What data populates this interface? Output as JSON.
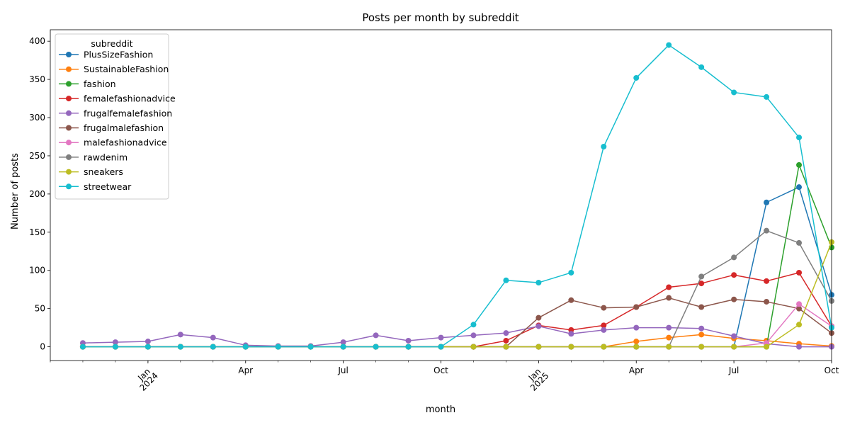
{
  "chart_data": {
    "type": "line",
    "title": "Posts per month by subreddit",
    "xlabel": "month",
    "ylabel": "Number of posts",
    "ylim": [
      -18,
      415
    ],
    "yticks": [
      0,
      50,
      100,
      150,
      200,
      250,
      300,
      350,
      400
    ],
    "x": [
      "2023-11",
      "2023-12",
      "2024-01",
      "2024-02",
      "2024-03",
      "2024-04",
      "2024-05",
      "2024-06",
      "2024-07",
      "2024-08",
      "2024-09",
      "2024-10",
      "2024-11",
      "2024-12",
      "2025-01",
      "2025-02",
      "2025-03",
      "2025-04",
      "2025-05",
      "2025-06",
      "2025-07",
      "2025-08",
      "2025-09",
      "2025-10"
    ],
    "xlim": [
      "2023-10",
      "2025-10"
    ],
    "xticks": [
      {
        "month": "2024-01",
        "label": "Jan",
        "year": "2024"
      },
      {
        "month": "2024-04",
        "label": "Apr",
        "year": ""
      },
      {
        "month": "2024-07",
        "label": "Jul",
        "year": ""
      },
      {
        "month": "2024-10",
        "label": "Oct",
        "year": ""
      },
      {
        "month": "2025-01",
        "label": "Jan",
        "year": "2025"
      },
      {
        "month": "2025-04",
        "label": "Apr",
        "year": ""
      },
      {
        "month": "2025-07",
        "label": "Jul",
        "year": ""
      },
      {
        "month": "2025-10",
        "label": "Oct",
        "year": ""
      }
    ],
    "legend": {
      "title": "subreddit",
      "position": "upper-left"
    },
    "grid": false,
    "series": [
      {
        "name": "PlusSizeFashion",
        "color": "#1f77b4",
        "values": [
          0,
          0,
          0,
          0,
          0,
          0,
          0,
          0,
          0,
          0,
          0,
          0,
          0,
          0,
          0,
          0,
          0,
          0,
          0,
          0,
          0,
          189,
          209,
          68
        ]
      },
      {
        "name": "SustainableFashion",
        "color": "#ff7f0e",
        "values": [
          0,
          0,
          0,
          0,
          0,
          0,
          0,
          0,
          0,
          0,
          0,
          0,
          0,
          0,
          0,
          0,
          0,
          7,
          12,
          16,
          11,
          8,
          4,
          1
        ]
      },
      {
        "name": "fashion",
        "color": "#2ca02c",
        "values": [
          0,
          0,
          0,
          0,
          0,
          0,
          0,
          0,
          0,
          0,
          0,
          0,
          0,
          0,
          0,
          0,
          0,
          0,
          0,
          0,
          0,
          0,
          238,
          130
        ]
      },
      {
        "name": "femalefashionadvice",
        "color": "#d62728",
        "values": [
          0,
          0,
          0,
          0,
          0,
          0,
          0,
          0,
          0,
          0,
          0,
          0,
          0,
          8,
          28,
          22,
          28,
          52,
          78,
          83,
          94,
          86,
          97,
          27
        ]
      },
      {
        "name": "frugalfemalefashion",
        "color": "#9467bd",
        "values": [
          5,
          6,
          7,
          16,
          12,
          2,
          1,
          1,
          6,
          15,
          8,
          12,
          15,
          18,
          27,
          17,
          22,
          25,
          25,
          24,
          14,
          4,
          0,
          0
        ]
      },
      {
        "name": "frugalmalefashion",
        "color": "#8c564b",
        "values": [
          0,
          0,
          0,
          0,
          0,
          0,
          0,
          0,
          0,
          0,
          0,
          0,
          0,
          0,
          38,
          61,
          51,
          52,
          64,
          52,
          62,
          59,
          50,
          18
        ]
      },
      {
        "name": "malefashionadvice",
        "color": "#e377c2",
        "values": [
          0,
          0,
          0,
          0,
          0,
          0,
          0,
          0,
          0,
          0,
          0,
          0,
          0,
          0,
          0,
          0,
          0,
          0,
          0,
          0,
          0,
          5,
          56,
          27
        ]
      },
      {
        "name": "rawdenim",
        "color": "#7f7f7f",
        "values": [
          0,
          0,
          0,
          0,
          0,
          0,
          0,
          0,
          0,
          0,
          0,
          0,
          0,
          0,
          0,
          0,
          0,
          0,
          0,
          92,
          117,
          152,
          136,
          60
        ]
      },
      {
        "name": "sneakers",
        "color": "#bcbd22",
        "values": [
          0,
          0,
          0,
          0,
          0,
          0,
          0,
          0,
          0,
          0,
          0,
          0,
          0,
          0,
          0,
          0,
          0,
          0,
          0,
          0,
          0,
          0,
          29,
          137
        ]
      },
      {
        "name": "streetwear",
        "color": "#17becf",
        "values": [
          0,
          0,
          0,
          0,
          0,
          0,
          0,
          0,
          0,
          0,
          0,
          0,
          29,
          87,
          84,
          97,
          262,
          352,
          395,
          366,
          333,
          327,
          274,
          25
        ]
      }
    ]
  }
}
